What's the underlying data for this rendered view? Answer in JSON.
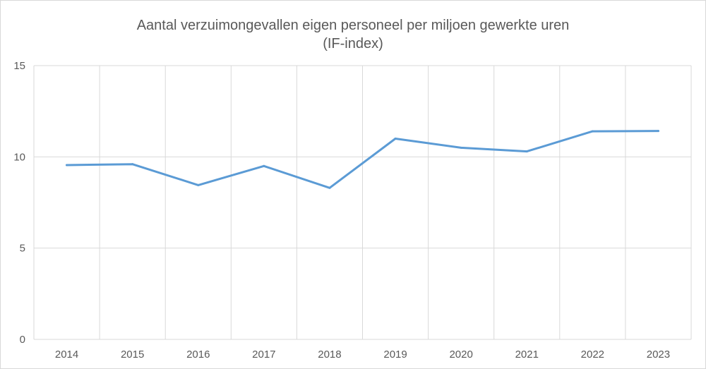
{
  "chart_data": {
    "type": "line",
    "title": "Aantal verzuimongevallen eigen personeel per miljoen gewerkte uren",
    "subtitle": "(IF-index)",
    "xlabel": "",
    "ylabel": "",
    "categories": [
      "2014",
      "2015",
      "2016",
      "2017",
      "2018",
      "2019",
      "2020",
      "2021",
      "2022",
      "2023"
    ],
    "series": [
      {
        "values": [
          9.55,
          9.6,
          8.45,
          9.5,
          8.3,
          11.0,
          10.5,
          10.3,
          11.4,
          11.42
        ],
        "color": "#5b9bd5"
      }
    ],
    "ylim": [
      0,
      15
    ],
    "yticks": [
      "0",
      "5",
      "10",
      "15"
    ],
    "grid": true,
    "legend": "none"
  }
}
